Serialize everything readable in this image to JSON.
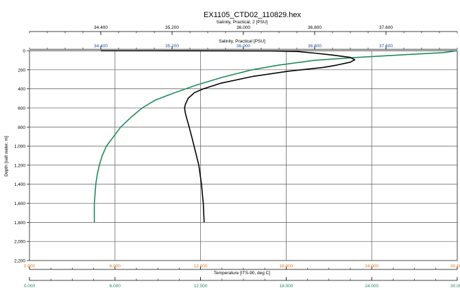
{
  "chart_data": {
    "type": "line",
    "title": "EX1105_CTD02_110829.hex",
    "grid": true,
    "axes": {
      "salinity2": {
        "label": "Salinity, Practical, 2 [PSU]",
        "ticks": [
          "34.400",
          "35.200",
          "36.000",
          "36.800",
          "37.600"
        ],
        "range": [
          33.6,
          38.4
        ],
        "color": "#000000"
      },
      "salinity": {
        "label": "Salinity, Practical [PSU]",
        "ticks": [
          "34.400",
          "35.200",
          "36.000",
          "36.800",
          "37.600"
        ],
        "range": [
          33.6,
          38.4
        ],
        "color": "#1f4e9e"
      },
      "depth": {
        "label": "Depth [salt water, m]",
        "ticks": [
          "0",
          "200",
          "400",
          "600",
          "800",
          "1,000",
          "1,200",
          "1,400",
          "1,600",
          "1,800",
          "2,000",
          "2,200"
        ],
        "range": [
          0,
          2200
        ],
        "inverted": true
      },
      "temperature": {
        "label": "Temperature [ITS-90, deg C]",
        "ticks": [
          "0.000",
          "6.000",
          "12.000",
          "18.000",
          "24.000",
          "30.000"
        ],
        "range": [
          0,
          30
        ],
        "color": "#e07a30"
      },
      "temperature2": {
        "label": "",
        "ticks": [
          "0.000",
          "6.000",
          "12.000",
          "18.000",
          "24.000",
          "30.000"
        ],
        "range": [
          0,
          30
        ],
        "color": "#1f8a5a"
      }
    },
    "series": [
      {
        "axis": "temperature",
        "color": "#1f8a5a",
        "points": [
          [
            30.0,
            0
          ],
          [
            29.5,
            10
          ],
          [
            29.0,
            20
          ],
          [
            26.5,
            40
          ],
          [
            23.0,
            70
          ],
          [
            20.0,
            100
          ],
          [
            17.5,
            150
          ],
          [
            15.6,
            200
          ],
          [
            13.5,
            280
          ],
          [
            11.7,
            360
          ],
          [
            10.0,
            450
          ],
          [
            8.8,
            520
          ],
          [
            7.9,
            600
          ],
          [
            7.1,
            700
          ],
          [
            6.4,
            800
          ],
          [
            5.9,
            900
          ],
          [
            5.4,
            1000
          ],
          [
            5.1,
            1100
          ],
          [
            4.9,
            1200
          ],
          [
            4.75,
            1300
          ],
          [
            4.65,
            1400
          ],
          [
            4.6,
            1500
          ],
          [
            4.55,
            1600
          ],
          [
            4.55,
            1700
          ],
          [
            4.55,
            1800
          ]
        ]
      },
      {
        "axis": "salinity",
        "color": "#000000",
        "points": [
          [
            34.4,
            0
          ],
          [
            35.0,
            0
          ],
          [
            36.3,
            2
          ],
          [
            36.6,
            8
          ],
          [
            36.8,
            25
          ],
          [
            37.0,
            45
          ],
          [
            37.2,
            70
          ],
          [
            37.25,
            95
          ],
          [
            37.2,
            120
          ],
          [
            37.05,
            150
          ],
          [
            36.9,
            175
          ],
          [
            36.5,
            215
          ],
          [
            36.1,
            270
          ],
          [
            35.75,
            340
          ],
          [
            35.55,
            400
          ],
          [
            35.45,
            440
          ],
          [
            35.38,
            500
          ],
          [
            35.35,
            560
          ],
          [
            35.34,
            600
          ],
          [
            35.35,
            660
          ],
          [
            35.38,
            760
          ],
          [
            35.42,
            900
          ],
          [
            35.46,
            1050
          ],
          [
            35.5,
            1200
          ],
          [
            35.53,
            1400
          ],
          [
            35.55,
            1600
          ],
          [
            35.56,
            1800
          ]
        ]
      }
    ]
  }
}
